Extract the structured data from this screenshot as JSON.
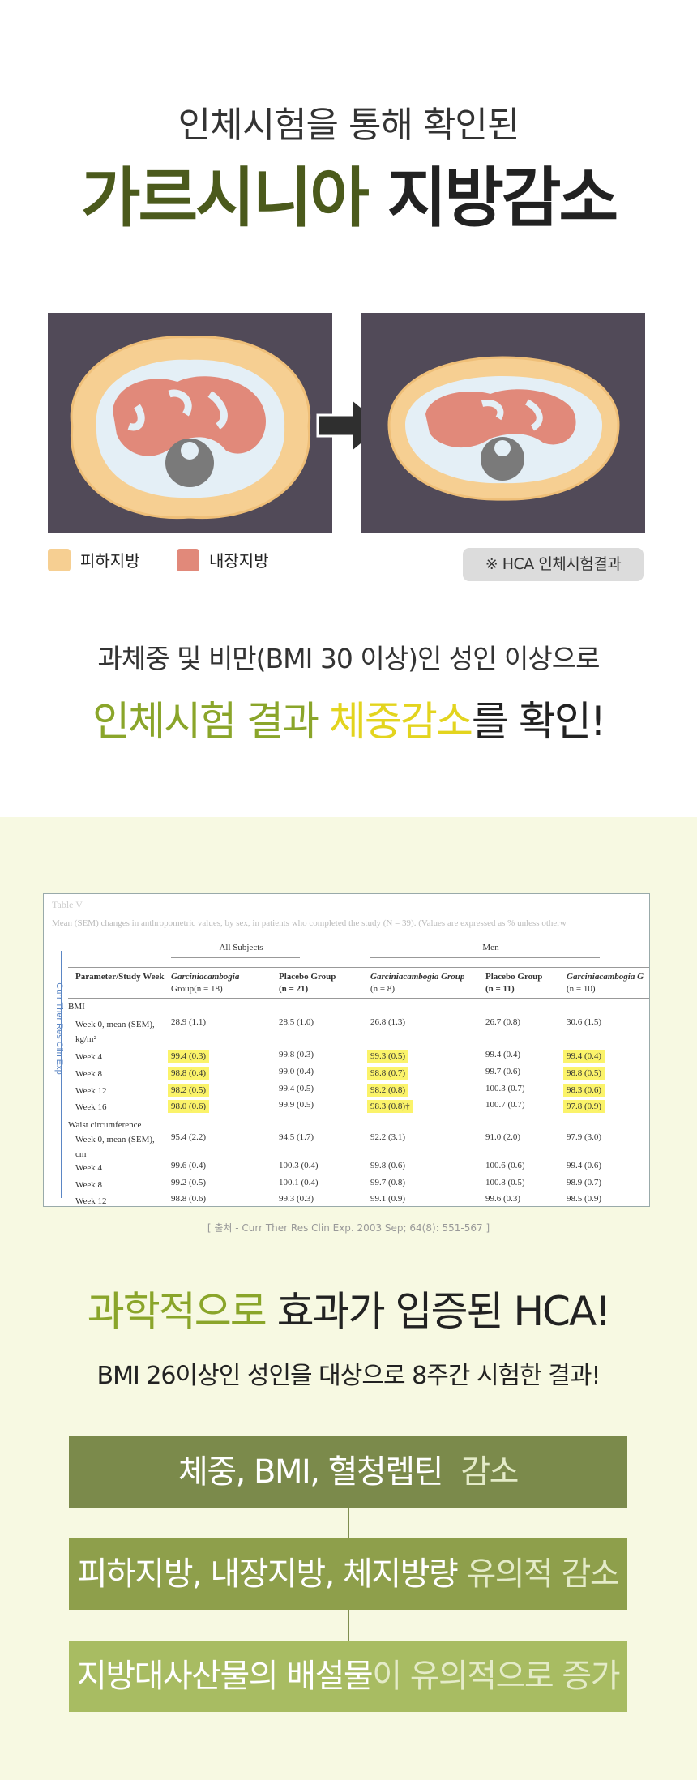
{
  "header": {
    "subtitle": "인체시험을 통해 확인된",
    "title_highlight": "가르시니아",
    "title_rest": " 지방감소"
  },
  "figure": {
    "legend": [
      "피하지방",
      "내장지방"
    ],
    "badge": "※ HCA 인체시험결과"
  },
  "summary": {
    "line1": "과체중 및 비만(BMI 30 이상)인 성인 이상으로",
    "line2_green": "인체시험 결과 ",
    "line2_yellow": "체중감소",
    "line2_rest": "를 확인!"
  },
  "table": {
    "label": "Table V",
    "caption": "Mean (SEM) changes in anthropometric values, by sex, in patients who completed the study (N = 39). (Values are expressed as % unless otherw",
    "side_text": "Curr Ther Res Clin Exp",
    "groups": [
      "All Subjects",
      "Men"
    ],
    "columns": [
      [
        "Parameter/Study Week"
      ],
      [
        "Garciniacambogia",
        "Group(n = 18)"
      ],
      [
        "Placebo Group",
        "(n = 21)"
      ],
      [
        "Garciniacambogia Group",
        "(n = 8)"
      ],
      [
        "Placebo Group",
        "(n = 11)"
      ],
      [
        "Garciniacambogia G",
        "(n = 10)"
      ]
    ],
    "rows": [
      [
        "BMI"
      ],
      [
        "Week 0, mean (SEM), kg/m²",
        "28.9 (1.1)",
        "28.5 (1.0)",
        "26.8 (1.3)",
        "26.7 (0.8)",
        "30.6 (1.5)"
      ],
      [
        "Week 4",
        "99.4 (0.3)",
        "99.8 (0.3)",
        "99.3 (0.5)",
        "99.4 (0.4)",
        "99.4 (0.4)"
      ],
      [
        "Week 8",
        "98.8 (0.4)",
        "99.0 (0.4)",
        "98.8 (0.7)",
        "99.7 (0.6)",
        "98.8 (0.5)"
      ],
      [
        "Week 12",
        "98.2 (0.5)",
        "99.4 (0.5)",
        "98.2 (0.8)",
        "100.3 (0.7)",
        "98.3 (0.6)"
      ],
      [
        "Week 16",
        "98.0 (0.6)",
        "99.9 (0.5)",
        "98.3 (0.8)†",
        "100.7 (0.7)",
        "97.8 (0.9)"
      ],
      [
        "Waist circumference"
      ],
      [
        "Week 0, mean (SEM), cm",
        "95.4 (2.2)",
        "94.5 (1.7)",
        "92.2 (3.1)",
        "91.0 (2.0)",
        "97.9 (3.0)"
      ],
      [
        "Week 4",
        "99.6 (0.4)",
        "100.3 (0.4)",
        "99.8 (0.6)",
        "100.6 (0.6)",
        "99.4 (0.6)"
      ],
      [
        "Week 8",
        "99.2 (0.5)",
        "100.1 (0.4)",
        "99.7 (0.8)",
        "100.8 (0.5)",
        "98.9 (0.7)"
      ],
      [
        "Week 12",
        "98.8 (0.6)",
        "99.3 (0.3)",
        "99.1 (0.9)",
        "99.6 (0.3)",
        "98.5 (0.9)"
      ]
    ]
  },
  "source": "[ 출처 - Curr Ther Res Clin Exp. 2003 Sep; 64(8): 551-567 ]",
  "result": {
    "title_highlight": "과학적으로",
    "title_rest": " 효과가 입증된 HCA!",
    "subtitle": "BMI 26이상인 성인을 대상으로 8주간 시험한 결과!",
    "items": [
      {
        "main": "체중, BMI, 혈청렙틴",
        "rest": "  감소"
      },
      {
        "main": "피하지방, 내장지방, 체지방량",
        "rest": " 유의적 감소"
      },
      {
        "main": "지방대사산물의 배설물",
        "rest": "이 유의적으로 증가"
      }
    ]
  }
}
